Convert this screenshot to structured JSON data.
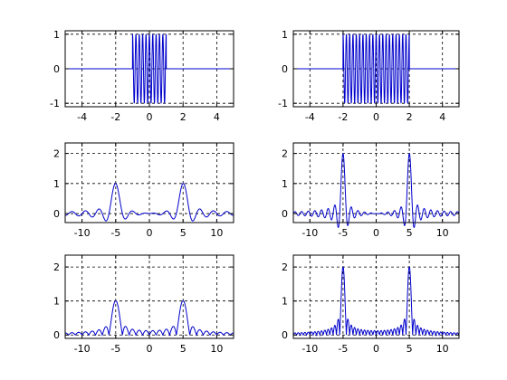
{
  "figure": {
    "color": "#0000cc"
  },
  "chart_data": [
    {
      "type": "line",
      "title": "",
      "xlabel": "",
      "ylabel": "",
      "xlim": [
        -5,
        5
      ],
      "ylim": [
        -1.1,
        1.1
      ],
      "xticks": [
        -4,
        -2,
        0,
        2,
        4
      ],
      "yticks": [
        -1,
        0,
        1
      ],
      "grid": true,
      "series": [
        {
          "kind": "burst",
          "half_width": 1,
          "frequency": 5,
          "range": [
            -5,
            5
          ]
        }
      ]
    },
    {
      "type": "line",
      "title": "",
      "xlabel": "",
      "ylabel": "",
      "xlim": [
        -5,
        5
      ],
      "ylim": [
        -1.1,
        1.1
      ],
      "xticks": [
        -4,
        -2,
        0,
        2,
        4
      ],
      "yticks": [
        -1,
        0,
        1
      ],
      "grid": true,
      "series": [
        {
          "kind": "burst",
          "half_width": 2,
          "frequency": 5,
          "range": [
            -5,
            5
          ]
        }
      ]
    },
    {
      "type": "line",
      "title": "",
      "xlabel": "",
      "ylabel": "",
      "xlim": [
        -12.5,
        12.5
      ],
      "ylim": [
        -0.3,
        2.35
      ],
      "xticks": [
        -10,
        -5,
        0,
        5,
        10
      ],
      "yticks": [
        0,
        1,
        2
      ],
      "grid": true,
      "series": [
        {
          "kind": "sinc",
          "peaks": [
            -5,
            5
          ],
          "peak_value": 1.0,
          "half_width": 1,
          "range": [
            -12.5,
            12.5
          ]
        }
      ]
    },
    {
      "type": "line",
      "title": "",
      "xlabel": "",
      "ylabel": "",
      "xlim": [
        -12.5,
        12.5
      ],
      "ylim": [
        -0.3,
        2.35
      ],
      "xticks": [
        -10,
        -5,
        0,
        5,
        10
      ],
      "yticks": [
        0,
        1,
        2
      ],
      "grid": true,
      "series": [
        {
          "kind": "sinc",
          "peaks": [
            -5,
            5
          ],
          "peak_value": 2.0,
          "half_width": 2,
          "range": [
            -12.5,
            12.5
          ]
        }
      ]
    },
    {
      "type": "line",
      "title": "",
      "xlabel": "",
      "ylabel": "",
      "xlim": [
        -12.5,
        12.5
      ],
      "ylim": [
        -0.1,
        2.35
      ],
      "xticks": [
        -10,
        -5,
        0,
        5,
        10
      ],
      "yticks": [
        0,
        1,
        2
      ],
      "grid": true,
      "series": [
        {
          "kind": "sinc_abs",
          "peaks": [
            -5,
            5
          ],
          "peak_value": 1.0,
          "half_width": 1,
          "range": [
            -12.5,
            12.5
          ]
        }
      ]
    },
    {
      "type": "line",
      "title": "",
      "xlabel": "",
      "ylabel": "",
      "xlim": [
        -12.5,
        12.5
      ],
      "ylim": [
        -0.1,
        2.35
      ],
      "xticks": [
        -10,
        -5,
        0,
        5,
        10
      ],
      "yticks": [
        0,
        1,
        2
      ],
      "grid": true,
      "series": [
        {
          "kind": "sinc_abs",
          "peaks": [
            -5,
            5
          ],
          "peak_value": 2.0,
          "half_width": 2,
          "range": [
            -12.5,
            12.5
          ]
        }
      ]
    }
  ]
}
